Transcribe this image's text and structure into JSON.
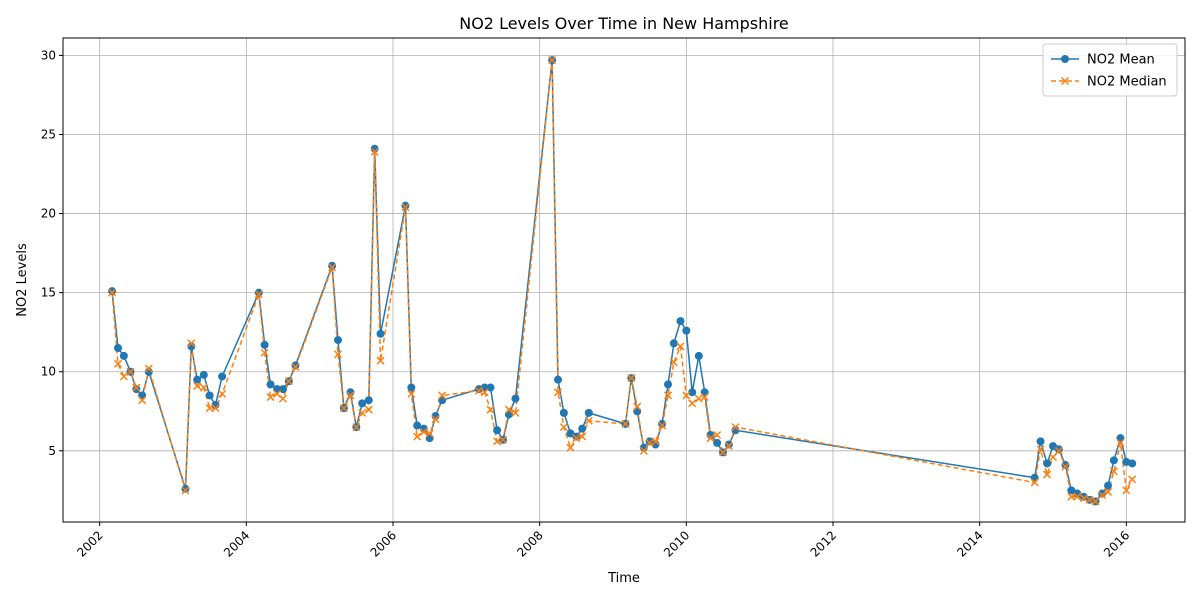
{
  "chart_data": {
    "type": "line",
    "title": "NO2 Levels Over Time in New Hampshire",
    "xlabel": "Time",
    "ylabel": "NO2 Levels",
    "xlim": [
      2001.5,
      2016.8
    ],
    "ylim": [
      0.5,
      31.1
    ],
    "xticks": [
      2002,
      2004,
      2006,
      2008,
      2010,
      2012,
      2014,
      2016
    ],
    "yticks": [
      5,
      10,
      15,
      20,
      25,
      30
    ],
    "grid": true,
    "legend_position": "top-right",
    "series": [
      {
        "name": "NO2 Mean",
        "color": "#1f77b4",
        "style": "solid",
        "marker": "circle",
        "x": [
          2002.17,
          2002.25,
          2002.33,
          2002.42,
          2002.5,
          2002.58,
          2002.67,
          2003.17,
          2003.25,
          2003.33,
          2003.42,
          2003.5,
          2003.58,
          2003.67,
          2004.17,
          2004.25,
          2004.33,
          2004.42,
          2004.5,
          2004.58,
          2004.67,
          2005.17,
          2005.25,
          2005.33,
          2005.42,
          2005.5,
          2005.58,
          2005.67,
          2005.75,
          2005.83,
          2006.17,
          2006.25,
          2006.33,
          2006.42,
          2006.5,
          2006.58,
          2006.67,
          2007.17,
          2007.25,
          2007.33,
          2007.42,
          2007.5,
          2007.58,
          2007.67,
          2008.17,
          2008.25,
          2008.33,
          2008.42,
          2008.5,
          2008.58,
          2008.67,
          2009.17,
          2009.25,
          2009.33,
          2009.42,
          2009.5,
          2009.58,
          2009.67,
          2009.75,
          2009.83,
          2009.92,
          2010.0,
          2010.08,
          2010.17,
          2010.25,
          2010.33,
          2010.42,
          2010.5,
          2010.58,
          2010.67,
          2014.75,
          2014.83,
          2014.92,
          2015.0,
          2015.08,
          2015.17,
          2015.25,
          2015.33,
          2015.42,
          2015.5,
          2015.58,
          2015.67,
          2015.75,
          2015.83,
          2015.92,
          2016.0,
          2016.08
        ],
        "values": [
          15.1,
          11.5,
          11.0,
          10.0,
          8.9,
          8.5,
          10.0,
          2.6,
          11.6,
          9.5,
          9.8,
          8.5,
          7.9,
          9.7,
          15.0,
          11.7,
          9.2,
          8.9,
          8.9,
          9.4,
          10.4,
          16.7,
          12.0,
          7.7,
          8.7,
          6.5,
          8.0,
          8.2,
          24.1,
          12.4,
          20.5,
          9.0,
          6.6,
          6.4,
          5.8,
          7.2,
          8.2,
          8.9,
          9.0,
          9.0,
          6.3,
          5.7,
          7.3,
          8.3,
          29.7,
          9.5,
          7.4,
          6.1,
          5.9,
          6.4,
          7.4,
          6.7,
          9.6,
          7.5,
          5.2,
          5.6,
          5.4,
          6.7,
          9.2,
          11.8,
          13.2,
          12.6,
          8.7,
          11.0,
          8.7,
          6.0,
          5.5,
          4.9,
          5.4,
          6.3,
          3.3,
          5.6,
          4.2,
          5.3,
          5.1,
          4.1,
          2.5,
          2.3,
          2.1,
          1.9,
          1.8,
          2.3,
          2.8,
          4.4,
          5.8,
          4.3,
          4.2
        ]
      },
      {
        "name": "NO2 Median",
        "color": "#ff7f0e",
        "style": "dashed",
        "marker": "x",
        "x": [
          2002.17,
          2002.25,
          2002.33,
          2002.42,
          2002.5,
          2002.58,
          2002.67,
          2003.17,
          2003.25,
          2003.33,
          2003.42,
          2003.5,
          2003.58,
          2003.67,
          2004.17,
          2004.25,
          2004.33,
          2004.42,
          2004.5,
          2004.58,
          2004.67,
          2005.17,
          2005.25,
          2005.33,
          2005.42,
          2005.5,
          2005.58,
          2005.67,
          2005.75,
          2005.83,
          2006.17,
          2006.25,
          2006.33,
          2006.42,
          2006.5,
          2006.58,
          2006.67,
          2007.17,
          2007.25,
          2007.33,
          2007.42,
          2007.5,
          2007.58,
          2007.67,
          2008.17,
          2008.25,
          2008.33,
          2008.42,
          2008.5,
          2008.58,
          2008.67,
          2009.17,
          2009.25,
          2009.33,
          2009.42,
          2009.5,
          2009.58,
          2009.67,
          2009.75,
          2009.83,
          2009.92,
          2010.0,
          2010.08,
          2010.17,
          2010.25,
          2010.33,
          2010.42,
          2010.5,
          2010.58,
          2010.67,
          2014.75,
          2014.83,
          2014.92,
          2015.0,
          2015.08,
          2015.17,
          2015.25,
          2015.33,
          2015.42,
          2015.5,
          2015.58,
          2015.67,
          2015.75,
          2015.83,
          2015.92,
          2016.0,
          2016.08
        ],
        "values": [
          15.0,
          10.5,
          9.7,
          10.0,
          9.0,
          8.2,
          10.2,
          2.5,
          11.8,
          9.1,
          9.0,
          7.7,
          7.7,
          8.6,
          14.9,
          11.2,
          8.4,
          8.6,
          8.3,
          9.4,
          10.3,
          16.6,
          11.1,
          7.7,
          8.5,
          6.5,
          7.4,
          7.6,
          23.9,
          10.7,
          20.4,
          8.6,
          5.9,
          6.2,
          6.1,
          7.0,
          8.5,
          8.8,
          8.7,
          7.6,
          5.6,
          5.7,
          7.6,
          7.4,
          29.7,
          8.7,
          6.5,
          5.2,
          5.8,
          5.9,
          6.9,
          6.7,
          9.6,
          7.8,
          5.0,
          5.5,
          5.6,
          6.6,
          8.5,
          10.6,
          11.6,
          8.5,
          8.0,
          8.3,
          8.4,
          5.8,
          6.0,
          4.9,
          5.3,
          6.5,
          3.0,
          5.1,
          3.5,
          4.6,
          5.0,
          4.0,
          2.1,
          2.1,
          2.0,
          1.9,
          1.8,
          2.2,
          2.4,
          3.7,
          5.5,
          2.5,
          3.2
        ]
      }
    ]
  }
}
